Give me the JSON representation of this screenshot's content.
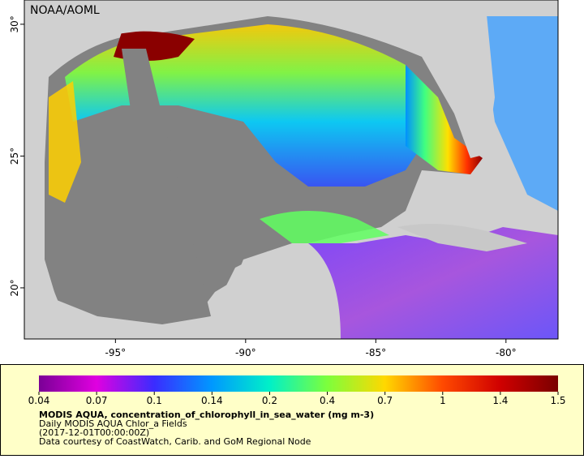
{
  "map": {
    "credit": "NOAA/AOML",
    "xlim": [
      -98.5,
      -78
    ],
    "ylim": [
      18.06,
      30.92
    ],
    "xticks": [
      {
        "value": -95,
        "label": "-95°"
      },
      {
        "value": -90,
        "label": "-90°"
      },
      {
        "value": -85,
        "label": "-85°"
      },
      {
        "value": -80,
        "label": "-80°"
      }
    ],
    "yticks": [
      {
        "value": 30,
        "label": "30°"
      },
      {
        "value": 25,
        "label": "25°"
      },
      {
        "value": 20,
        "label": "20°"
      }
    ]
  },
  "colorbar": {
    "ticks": [
      0.04,
      0.07,
      0.1,
      0.14,
      0.2,
      0.4,
      0.7,
      1,
      1.4,
      1.5
    ]
  },
  "caption": {
    "title": "MODIS AQUA, concentration_of_chlorophyll_in_sea_water (mg m-3)",
    "lines": [
      "Daily MODIS AQUA Chlor_a Fields",
      "(2017-12-01T00:00:00Z)",
      "Data courtesy of CoastWatch, Carib. and GoM Regional Node"
    ]
  }
}
